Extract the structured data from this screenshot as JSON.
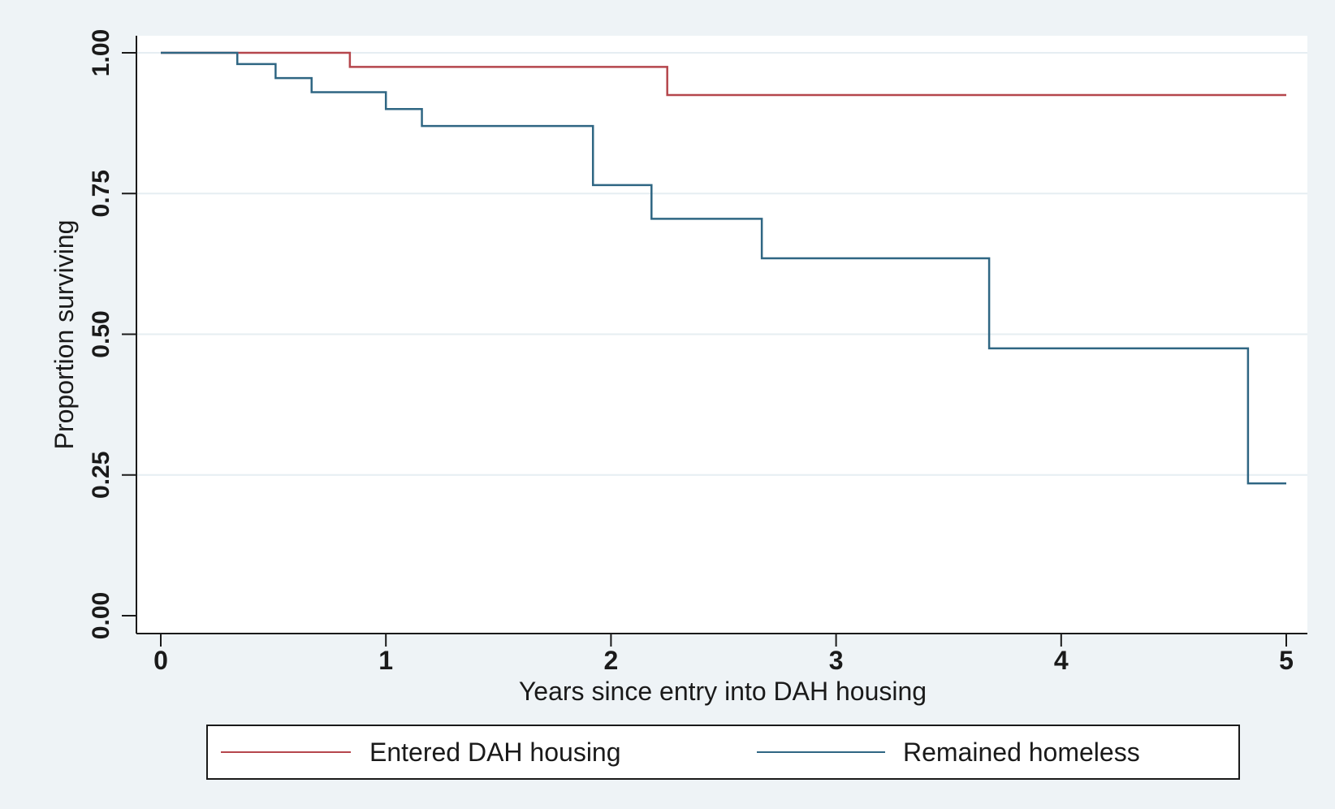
{
  "chart_data": {
    "type": "line",
    "step": true,
    "title": "",
    "xlabel": "Years since entry into DAH housing",
    "ylabel": "Proportion surviving",
    "xlim": [
      0,
      5
    ],
    "ylim": [
      0,
      1
    ],
    "x_ticks": [
      0,
      1,
      2,
      3,
      4,
      5
    ],
    "x_tick_labels": [
      "0",
      "1",
      "2",
      "3",
      "4",
      "5"
    ],
    "y_ticks": [
      0,
      0.25,
      0.5,
      0.75,
      1
    ],
    "y_tick_labels": [
      "0.00",
      "0.25",
      "0.50",
      "0.75",
      "1.00"
    ],
    "grid": "horizontal",
    "legend_position": "bottom",
    "series": [
      {
        "name": "Entered DAH housing",
        "color": "#b5464c",
        "x": [
          0,
          0.84,
          2.25,
          5
        ],
        "y": [
          1.0,
          0.975,
          0.925,
          0.925
        ]
      },
      {
        "name": "Remained homeless",
        "color": "#2f6683",
        "x": [
          0,
          0.34,
          0.51,
          0.67,
          1.0,
          1.16,
          1.92,
          2.18,
          2.67,
          3.68,
          4.83,
          5
        ],
        "y": [
          1.0,
          0.98,
          0.955,
          0.93,
          0.9,
          0.87,
          0.765,
          0.705,
          0.635,
          0.475,
          0.235,
          0.235
        ]
      }
    ]
  }
}
